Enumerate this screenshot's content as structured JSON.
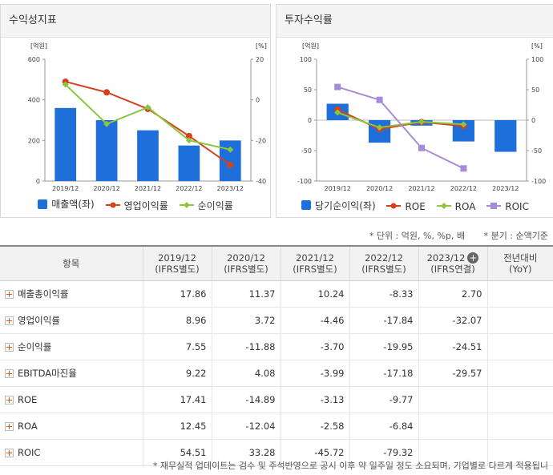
{
  "left_panel": {
    "title": "수익성지표",
    "unit_left": "[억원]",
    "unit_right": "[%]",
    "legend": [
      "매출액(좌)",
      "영업이익률",
      "순이익률"
    ]
  },
  "right_panel": {
    "title": "투자수익률",
    "unit_left": "[억원]",
    "unit_right": "[%]",
    "legend": [
      "당기순이익(좌)",
      "ROE",
      "ROA",
      "ROIC"
    ]
  },
  "notes": {
    "unit": "* 단위 : 억원, %, %p, 배",
    "period": "* 분기 : 순액기준"
  },
  "table": {
    "headers": [
      {
        "line1": "항목",
        "line2": ""
      },
      {
        "line1": "2019/12",
        "line2": "(IFRS별도)"
      },
      {
        "line1": "2020/12",
        "line2": "(IFRS별도)"
      },
      {
        "line1": "2021/12",
        "line2": "(IFRS별도)"
      },
      {
        "line1": "2022/12",
        "line2": "(IFRS별도)"
      },
      {
        "line1": "2023/12",
        "line2": "(IFRS연결)"
      },
      {
        "line1": "전년대비",
        "line2": "(YoY)"
      }
    ],
    "rows": [
      {
        "label": "매출총이익률",
        "values": [
          "17.86",
          "11.37",
          "10.24",
          "-8.33",
          "2.70",
          ""
        ]
      },
      {
        "label": "영업이익률",
        "values": [
          "8.96",
          "3.72",
          "-4.46",
          "-17.84",
          "-32.07",
          ""
        ]
      },
      {
        "label": "순이익률",
        "values": [
          "7.55",
          "-11.88",
          "-3.70",
          "-19.95",
          "-24.51",
          ""
        ]
      },
      {
        "label": "EBITDA마진율",
        "values": [
          "9.22",
          "4.08",
          "-3.99",
          "-17.18",
          "-29.57",
          ""
        ]
      },
      {
        "label": "ROE",
        "values": [
          "17.41",
          "-14.89",
          "-3.13",
          "-9.77",
          "",
          ""
        ]
      },
      {
        "label": "ROA",
        "values": [
          "12.45",
          "-12.04",
          "-2.58",
          "-6.84",
          "",
          ""
        ]
      },
      {
        "label": "ROIC",
        "values": [
          "54.51",
          "33.28",
          "-45.72",
          "-79.32",
          "",
          ""
        ]
      }
    ]
  },
  "footer": "* 재무실적 업데이트는 검수 및 주석반영으로 공시 이후 약 일주일 정도 소요되며, 기업별로 다르게 적용됩니",
  "chart_data": [
    {
      "type": "bar",
      "title": "수익성지표",
      "categories": [
        "2019/12",
        "2020/12",
        "2021/12",
        "2022/12",
        "2023/12"
      ],
      "ylim_left": [
        0,
        600
      ],
      "yticks_left": [
        0,
        200,
        400,
        600
      ],
      "ylim_right": [
        -40,
        20
      ],
      "yticks_right": [
        -40,
        -20,
        0,
        20
      ],
      "series": [
        {
          "name": "매출액(좌)",
          "type": "bar",
          "axis": "left",
          "color": "#1e6fd9",
          "values": [
            360,
            300,
            250,
            175,
            200
          ]
        },
        {
          "name": "영업이익률",
          "type": "line",
          "axis": "right",
          "color": "#d5401f",
          "values": [
            8.96,
            3.72,
            -4.46,
            -17.84,
            -32.07
          ]
        },
        {
          "name": "순이익률",
          "type": "line",
          "axis": "right",
          "color": "#8cc63f",
          "values": [
            7.55,
            -11.88,
            -3.7,
            -19.95,
            -24.51
          ]
        }
      ],
      "grid": false,
      "legend_position": "bottom"
    },
    {
      "type": "bar",
      "title": "투자수익률",
      "categories": [
        "2019/12",
        "2020/12",
        "2021/12",
        "2022/12",
        "2023/12"
      ],
      "ylim_left": [
        -100,
        100
      ],
      "yticks_left": [
        -100,
        -50,
        0,
        50,
        100
      ],
      "ylim_right": [
        -100,
        100
      ],
      "yticks_right": [
        -100,
        -50,
        0,
        50,
        100
      ],
      "series": [
        {
          "name": "당기순이익(좌)",
          "type": "bar",
          "axis": "left",
          "color": "#1e6fd9",
          "values": [
            27,
            -37,
            -9,
            -35,
            -52
          ]
        },
        {
          "name": "ROE",
          "type": "line",
          "axis": "right",
          "color": "#d5401f",
          "values": [
            17.41,
            -14.89,
            -3.13,
            -9.77,
            null
          ]
        },
        {
          "name": "ROA",
          "type": "line",
          "axis": "right",
          "color": "#8cc63f",
          "values": [
            12.45,
            -12.04,
            -2.58,
            -6.84,
            null
          ]
        },
        {
          "name": "ROIC",
          "type": "line",
          "axis": "right",
          "color": "#a78bd8",
          "values": [
            54.51,
            33.28,
            -45.72,
            -79.32,
            null
          ]
        }
      ],
      "grid": false,
      "legend_position": "bottom"
    }
  ]
}
